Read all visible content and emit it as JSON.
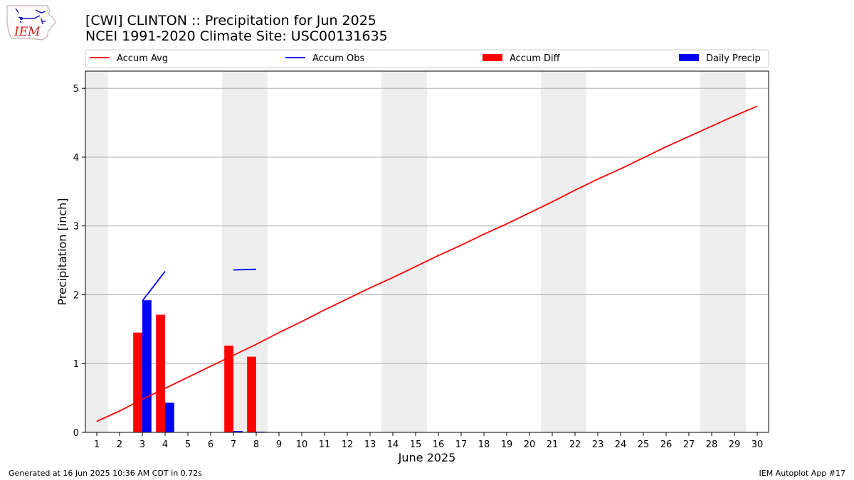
{
  "header": {
    "title_line1": "[CWI] CLINTON :: Precipitation for Jun 2025",
    "title_line2": "NCEI 1991-2020 Climate Site: USC00131635",
    "logo_text": "IEM"
  },
  "footer": {
    "left": "Generated at 16 Jun 2025 10:36 AM CDT in 0.72s",
    "right": "IEM Autoplot App #17"
  },
  "colors": {
    "accum_avg": "#ff0000",
    "accum_obs": "#0000ff",
    "accum_diff": "#ff0000",
    "daily_precip": "#0000ff",
    "weekend_band": "#eeeeee",
    "grid": "#b0b0b0"
  },
  "chart_data": {
    "type": "bar",
    "title": "[CWI] CLINTON :: Precipitation for Jun 2025",
    "subtitle": "NCEI 1991-2020 Climate Site: USC00131635",
    "xlabel": "June 2025",
    "ylabel": "Precipitation [inch]",
    "x": [
      1,
      2,
      3,
      4,
      5,
      6,
      7,
      8,
      9,
      10,
      11,
      12,
      13,
      14,
      15,
      16,
      17,
      18,
      19,
      20,
      21,
      22,
      23,
      24,
      25,
      26,
      27,
      28,
      29,
      30
    ],
    "xlim": [
      0.5,
      30.5
    ],
    "ylim": [
      0,
      5.25
    ],
    "yticks": [
      0,
      1,
      2,
      3,
      4,
      5
    ],
    "grid": "horizontal",
    "legend_position": "top",
    "weekend_bands": [
      [
        0.5,
        1.5
      ],
      [
        6.5,
        8.5
      ],
      [
        13.5,
        15.5
      ],
      [
        20.5,
        22.5
      ],
      [
        27.5,
        29.5
      ]
    ],
    "series": [
      {
        "name": "Accum Avg",
        "kind": "line",
        "values": [
          0.16,
          0.31,
          0.48,
          0.64,
          0.8,
          0.96,
          1.12,
          1.28,
          1.45,
          1.61,
          1.78,
          1.94,
          2.1,
          2.25,
          2.41,
          2.57,
          2.72,
          2.88,
          3.03,
          3.19,
          3.35,
          3.52,
          3.68,
          3.83,
          3.99,
          4.15,
          4.3,
          4.45,
          4.6,
          4.74
        ]
      },
      {
        "name": "Accum Obs",
        "kind": "line",
        "values": [
          null,
          null,
          1.91,
          2.34,
          null,
          null,
          2.36,
          2.37,
          null,
          null,
          null,
          null,
          null,
          null,
          null,
          null,
          null,
          null,
          null,
          null,
          null,
          null,
          null,
          null,
          null,
          null,
          null,
          null,
          null,
          null
        ]
      },
      {
        "name": "Accum Diff",
        "kind": "bar",
        "values": [
          0,
          0,
          1.45,
          1.71,
          0,
          0,
          1.26,
          1.1,
          0,
          0,
          0,
          0,
          0,
          0,
          0,
          0,
          0,
          0,
          0,
          0,
          0,
          0,
          0,
          0,
          0,
          0,
          0,
          0,
          0,
          0
        ]
      },
      {
        "name": "Daily Precip",
        "kind": "bar",
        "values": [
          0,
          0,
          1.92,
          0.43,
          0,
          0,
          0.02,
          0.01,
          0,
          0,
          0,
          0,
          0,
          0,
          0,
          0,
          0,
          0,
          0,
          0,
          0,
          0,
          0,
          0,
          0,
          0,
          0,
          0,
          0,
          0
        ]
      }
    ]
  }
}
